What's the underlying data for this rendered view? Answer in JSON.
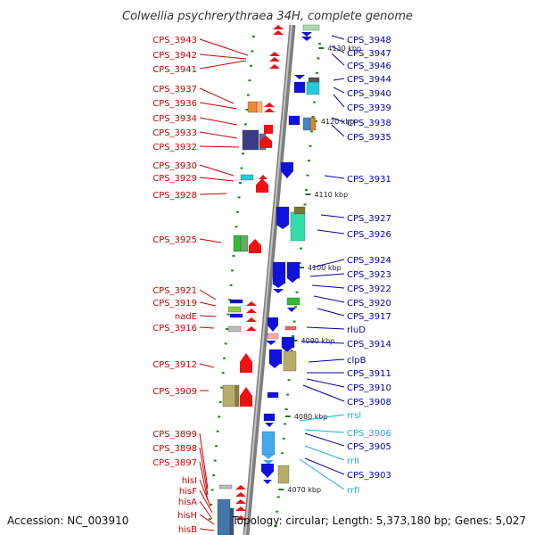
{
  "title": "Colwellia psychrerythraea 34H, complete genome",
  "footer": {
    "accession": "Accession: NC_003910",
    "summary": "Topology: circular; Length: 5,373,180 bp; Genes: 5,027"
  },
  "colors": {
    "left_label": "#cc0000",
    "right_label": "#0000aa",
    "rna_label": "#22aadd",
    "backbone": "#9a9a9a"
  },
  "kbp_ticks": [
    "4130 kbp",
    "4120 kbp",
    "4110 kbp",
    "4100 kbp",
    "4090 kbp",
    "4080 kbp",
    "4070 kbp"
  ],
  "left_labels": [
    "CPS_3943",
    "CPS_3942",
    "CPS_3941",
    "CPS_3937",
    "CPS_3936",
    "CPS_3934",
    "CPS_3933",
    "CPS_3932",
    "CPS_3930",
    "CPS_3929",
    "CPS_3928",
    "CPS_3925",
    "CPS_3921",
    "CPS_3919",
    "nadE",
    "CPS_3916",
    "CPS_3912",
    "CPS_3909",
    "CPS_3899",
    "CPS_3898",
    "CPS_3897",
    "hisI",
    "hisF",
    "hisA",
    "hisH",
    "hisB"
  ],
  "right_labels": [
    "CPS_3948",
    "CPS_3947",
    "CPS_3946",
    "CPS_3944",
    "CPS_3940",
    "CPS_3939",
    "CPS_3938",
    "CPS_3935",
    "CPS_3931",
    "CPS_3927",
    "CPS_3926",
    "CPS_3924",
    "CPS_3923",
    "CPS_3922",
    "CPS_3920",
    "CPS_3917",
    "rluD",
    "CPS_3914",
    "clpB",
    "CPS_3911",
    "CPS_3910",
    "CPS_3908",
    "rrsI",
    "CPS_3906",
    "CPS_3905",
    "rrlI",
    "CPS_3903",
    "rrfI"
  ],
  "rna_labels": [
    "rrsI",
    "CPS_3906",
    "rrlI",
    "rrfI"
  ]
}
